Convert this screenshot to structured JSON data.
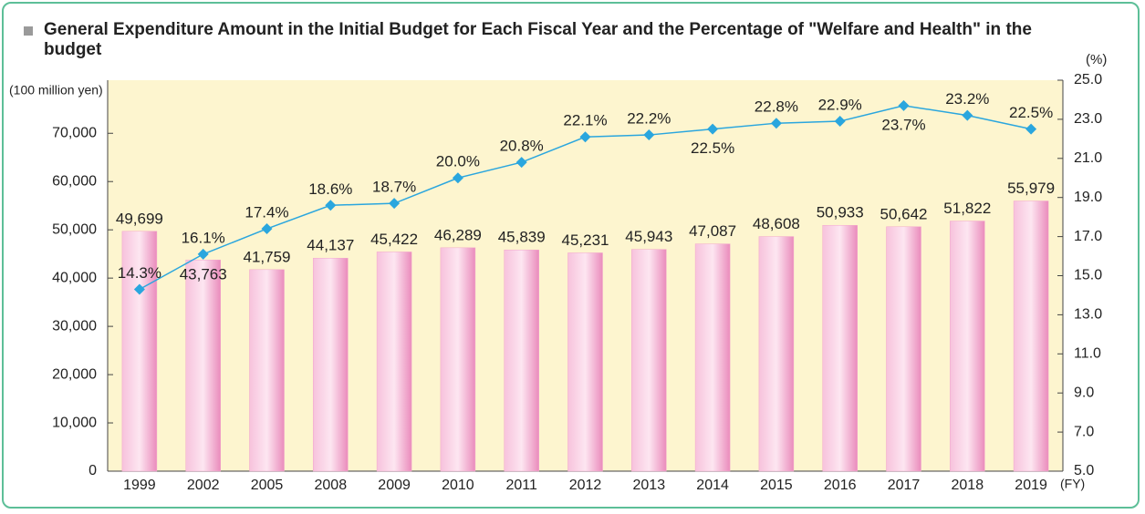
{
  "chart_data": {
    "type": "bar+line",
    "title": "General Expenditure Amount in the Initial Budget for Each Fiscal Year and the Percentage of \"Welfare and Health\" in the budget",
    "y_label": "(100 million yen)",
    "y2_label": "(%)",
    "x_label": "(FY)",
    "categories": [
      "1999",
      "2002",
      "2005",
      "2008",
      "2009",
      "2010",
      "2011",
      "2012",
      "2013",
      "2014",
      "2015",
      "2016",
      "2017",
      "2018",
      "2019"
    ],
    "series": [
      {
        "name": "General Expenditure Amount",
        "type": "bar",
        "color": "#f2a6cc",
        "values": [
          49699,
          43763,
          41759,
          44137,
          45422,
          46289,
          45839,
          45231,
          45943,
          47087,
          48608,
          50933,
          50642,
          51822,
          55979
        ],
        "value_labels": [
          "49,699",
          "43,763",
          "41,759",
          "44,137",
          "45,422",
          "46,289",
          "45,839",
          "45,231",
          "45,943",
          "47,087",
          "48,608",
          "50,933",
          "50,642",
          "51,822",
          "55,979"
        ]
      },
      {
        "name": "Percentage of Welfare and Health",
        "type": "line",
        "axis": "y2",
        "color": "#2aa6de",
        "values": [
          14.3,
          16.1,
          17.4,
          18.6,
          18.7,
          20.0,
          20.8,
          22.1,
          22.2,
          22.5,
          22.8,
          22.9,
          23.7,
          23.2,
          22.5
        ],
        "value_labels": [
          "14.3%",
          "16.1%",
          "17.4%",
          "18.6%",
          "18.7%",
          "20.0%",
          "20.8%",
          "22.1%",
          "22.2%",
          "22.5%",
          "22.8%",
          "22.9%",
          "23.7%",
          "23.2%",
          "22.5%"
        ]
      }
    ],
    "ylim": [
      0,
      81000
    ],
    "yticks": [
      0,
      {
        "value": 10000,
        "label": "10,000"
      },
      {
        "value": 20000,
        "label": "20,000"
      },
      {
        "value": 30000,
        "label": "30,000"
      },
      {
        "value": 40000,
        "label": "40,000"
      },
      {
        "value": 50000,
        "label": "50,000"
      },
      {
        "value": 60000,
        "label": "60,000"
      },
      {
        "value": 70000,
        "label": "70,000"
      }
    ],
    "y2lim": [
      5,
      25
    ],
    "y2ticks": [
      {
        "value": 5,
        "label": "5.0"
      },
      {
        "value": 7,
        "label": "7.0"
      },
      {
        "value": 9,
        "label": "9.0"
      },
      {
        "value": 11,
        "label": "11.0"
      },
      {
        "value": 13,
        "label": "13.0"
      },
      {
        "value": 15,
        "label": "15.0"
      },
      {
        "value": 17,
        "label": "17.0"
      },
      {
        "value": 19,
        "label": "19.0"
      },
      {
        "value": 21,
        "label": "21.0"
      },
      {
        "value": 23,
        "label": "23.0"
      },
      {
        "value": 25,
        "label": "25.0"
      }
    ],
    "plot_background": "#fdf5cf"
  }
}
